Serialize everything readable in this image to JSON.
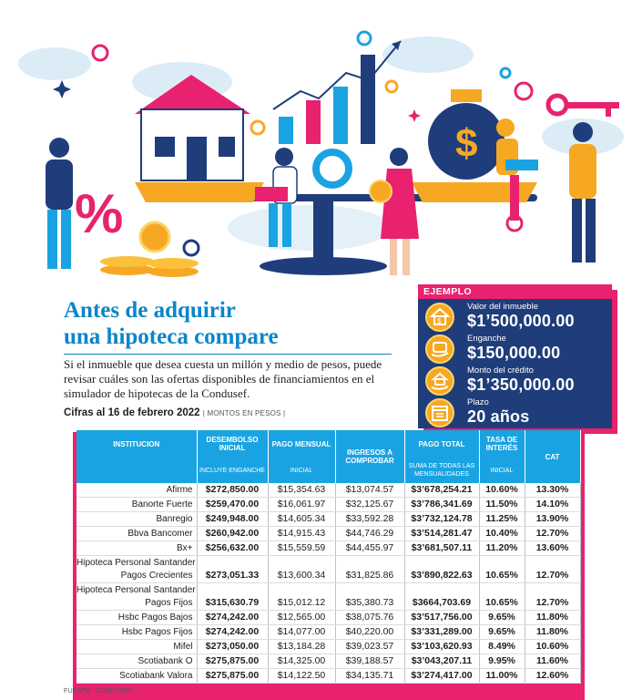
{
  "header": {
    "title_line1": "Antes de adquirir",
    "title_line2": "una hipoteca compare",
    "intro": "Si el inmueble que desea cuesta un millón y medio de pesos, puede revisar cuáles son las ofertas disponibles de financiamientos en el simulador de hipotecas de la Condusef.",
    "cifras_bold": "Cifras al 16 de febrero 2022",
    "cifras_sub": "| MONTOS EN PESOS |"
  },
  "example": {
    "heading": "EJEMPLO",
    "items": [
      {
        "label": "Valor del inmueble",
        "value": "$1’500,000.00",
        "icon": "house-icon"
      },
      {
        "label": "Enganche",
        "value": "$150,000.00",
        "icon": "money-hand-icon"
      },
      {
        "label": "Monto del crédito",
        "value": "$1’350,000.00",
        "icon": "house-hand-icon"
      },
      {
        "label": "Plazo",
        "value": "20 años",
        "icon": "calendar-icon"
      }
    ]
  },
  "table": {
    "headers": [
      {
        "main": "INSTITUCION",
        "sub": ""
      },
      {
        "main": "DESEMBOLSO INICIAL",
        "sub": "INCLUYE ENGANCHE"
      },
      {
        "main": "PAGO MENSUAL",
        "sub": "INICIAL"
      },
      {
        "main": "INGRESOS A COMPROBAR",
        "sub": ""
      },
      {
        "main": "PAGO TOTAL",
        "sub": "SUMA DE TODAS LAS MENSUALIDADES"
      },
      {
        "main": "TASA DE INTERÉS",
        "sub": "INICIAL"
      },
      {
        "main": "CAT",
        "sub": ""
      }
    ],
    "rows": [
      {
        "name": [
          "Afirme"
        ],
        "cells": [
          "$272,850.00",
          "$15,354.63",
          "$13,074.57",
          "$3’678,254.21",
          "10.60%",
          "13.30%"
        ]
      },
      {
        "name": [
          "Banorte Fuerte"
        ],
        "cells": [
          "$259,470.00",
          "$16,061.97",
          "$32,125.67",
          "$3’786,341.69",
          "11.50%",
          "14.10%"
        ]
      },
      {
        "name": [
          "Banregio"
        ],
        "cells": [
          "$249,948.00",
          "$14,605.34",
          "$33,592.28",
          "$3’732,124.78",
          "11.25%",
          "13.90%"
        ]
      },
      {
        "name": [
          "Bbva Bancomer"
        ],
        "cells": [
          "$260,942.00",
          "$14,915.43",
          "$44,746.29",
          "$3’514,281.47",
          "10.40%",
          "12.70%"
        ]
      },
      {
        "name": [
          "Bx+"
        ],
        "cells": [
          "$256,632.00",
          "$15,559.59",
          "$44,455.97",
          "$3’681,507.11",
          "11.20%",
          "13.60%"
        ]
      },
      {
        "name": [
          "Hipoteca Personal Santander",
          "Pagos Crecientes"
        ],
        "cells": [
          "$273,051.33",
          "$13,600.34",
          "$31,825.86",
          "$3’890,822.63",
          "10.65%",
          "12.70%"
        ]
      },
      {
        "name": [
          "Hipoteca Personal Santander",
          "Pagos Fijos"
        ],
        "cells": [
          "$315,630.79",
          "$15,012.12",
          "$35,380.73",
          "$3664,703.69",
          "10.65%",
          "12.70%"
        ]
      },
      {
        "name": [
          "Hsbc Pagos Bajos"
        ],
        "cells": [
          "$274,242.00",
          "$12,565.00",
          "$38,075.76",
          "$3’517,756.00",
          "9.65%",
          "11.80%"
        ]
      },
      {
        "name": [
          "Hsbc Pagos Fijos"
        ],
        "cells": [
          "$274,242.00",
          "$14,077.00",
          "$40,220.00",
          "$3’331,289.00",
          "9.65%",
          "11.80%"
        ]
      },
      {
        "name": [
          "Mifel"
        ],
        "cells": [
          "$273,050.00",
          "$13,184.28",
          "$39,023.57",
          "$3’103,620.93",
          "8.49%",
          "10.60%"
        ]
      },
      {
        "name": [
          "Scotiabank O"
        ],
        "cells": [
          "$275,875.00",
          "$14,325.00",
          "$39,188.57",
          "$3’043,207.11",
          "9.95%",
          "11.60%"
        ]
      },
      {
        "name": [
          "Scotiabank Valora"
        ],
        "cells": [
          "$275,875.00",
          "$14,122.50",
          "$34,135.71",
          "$3’274,417.00",
          "11.00%",
          "12.60%"
        ]
      }
    ],
    "source": "FUENTE: CONDUSEF"
  },
  "colors": {
    "accent_blue": "#0a86c8",
    "header_blue": "#1aa3e2",
    "navy": "#1f3d7a",
    "pink": "#e8226f",
    "yellow": "#f7a823"
  }
}
